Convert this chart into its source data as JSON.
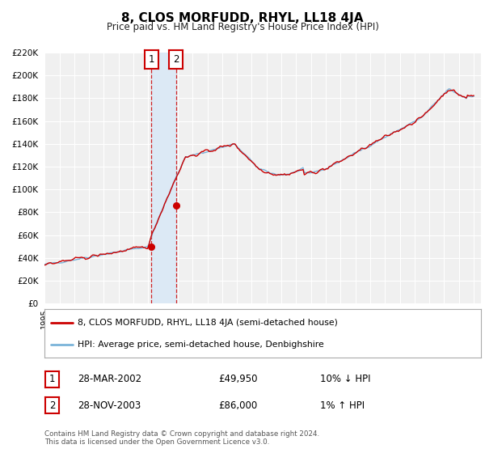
{
  "title": "8, CLOS MORFUDD, RHYL, LL18 4JA",
  "subtitle": "Price paid vs. HM Land Registry's House Price Index (HPI)",
  "legend_line1": "8, CLOS MORFUDD, RHYL, LL18 4JA (semi-detached house)",
  "legend_line2": "HPI: Average price, semi-detached house, Denbighshire",
  "hpi_color": "#7ab3d9",
  "price_color": "#cc0000",
  "point1_date": "28-MAR-2002",
  "point1_price": 49950,
  "point1_price_str": "£49,950",
  "point1_hpi_pct": "10% ↓ HPI",
  "point2_date": "28-NOV-2003",
  "point2_price": 86000,
  "point2_price_str": "£86,000",
  "point2_hpi_pct": "1% ↑ HPI",
  "footnote1": "Contains HM Land Registry data © Crown copyright and database right 2024.",
  "footnote2": "This data is licensed under the Open Government Licence v3.0.",
  "ylim": [
    0,
    220000
  ],
  "yticks": [
    0,
    20000,
    40000,
    60000,
    80000,
    100000,
    120000,
    140000,
    160000,
    180000,
    200000,
    220000
  ],
  "background_color": "#ffffff",
  "plot_bg_color": "#f0f0f0",
  "grid_color": "#ffffff",
  "shade_color": "#dce9f5",
  "sale1_year": 2002.208,
  "sale2_year": 2003.875
}
